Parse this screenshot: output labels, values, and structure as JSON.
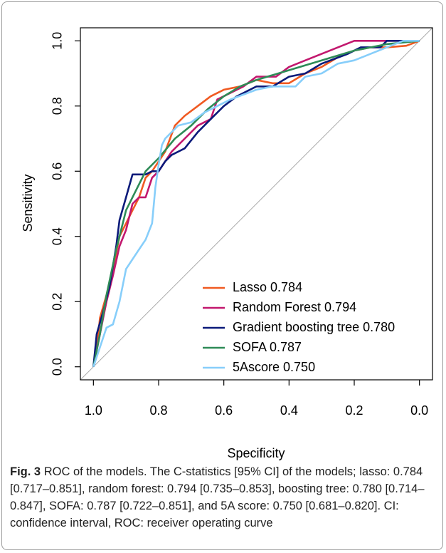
{
  "chart_data": {
    "type": "line",
    "xlabel": "Specificity",
    "ylabel": "Sensitivity",
    "xlim": [
      1.04,
      -0.04
    ],
    "ylim": [
      -0.04,
      1.04
    ],
    "xticks": [
      {
        "value": 1,
        "label": "1.0"
      },
      0.8,
      0.6,
      0.4,
      0.2,
      {
        "value": 0,
        "label": "0.0"
      }
    ],
    "yticks": [
      {
        "value": 0,
        "label": "0.0"
      },
      0.2,
      0.4,
      0.6,
      0.8,
      {
        "value": 1,
        "label": "1.0"
      }
    ],
    "diagonal": true,
    "diagonal_color": "#aaaaaa",
    "legend": "bottomright",
    "series": [
      {
        "name": "Lasso 0.784",
        "color": "#f05a22",
        "x": [
          1,
          0.99,
          0.98,
          0.96,
          0.94,
          0.92,
          0.9,
          0.88,
          0.86,
          0.84,
          0.82,
          0.78,
          0.75,
          0.72,
          0.68,
          0.64,
          0.6,
          0.55,
          0.5,
          0.45,
          0.4,
          0.35,
          0.3,
          0.25,
          0.2,
          0.15,
          0.1,
          0.04,
          0
        ],
        "values": [
          0,
          0.05,
          0.15,
          0.22,
          0.3,
          0.4,
          0.44,
          0.48,
          0.52,
          0.58,
          0.6,
          0.66,
          0.74,
          0.77,
          0.8,
          0.83,
          0.85,
          0.86,
          0.88,
          0.87,
          0.87,
          0.9,
          0.92,
          0.95,
          0.97,
          0.98,
          0.98,
          0.985,
          1
        ]
      },
      {
        "name": "Random Forest 0.794",
        "color": "#c2186e",
        "x": [
          1,
          0.98,
          0.96,
          0.94,
          0.92,
          0.9,
          0.88,
          0.86,
          0.84,
          0.82,
          0.8,
          0.76,
          0.72,
          0.68,
          0.64,
          0.62,
          0.58,
          0.54,
          0.5,
          0.44,
          0.4,
          0.35,
          0.3,
          0.25,
          0.2,
          0
        ],
        "values": [
          0,
          0.1,
          0.2,
          0.28,
          0.37,
          0.42,
          0.5,
          0.52,
          0.52,
          0.58,
          0.6,
          0.66,
          0.7,
          0.74,
          0.76,
          0.82,
          0.84,
          0.86,
          0.89,
          0.89,
          0.92,
          0.94,
          0.96,
          0.98,
          1,
          1
        ]
      },
      {
        "name": "Gradient boosting tree 0.780",
        "color": "#0b1a7a",
        "x": [
          1,
          0.99,
          0.97,
          0.95,
          0.93,
          0.92,
          0.9,
          0.88,
          0.84,
          0.82,
          0.8,
          0.78,
          0.76,
          0.72,
          0.68,
          0.64,
          0.6,
          0.56,
          0.5,
          0.45,
          0.4,
          0.35,
          0.3,
          0.22,
          0.18,
          0.12,
          0.1,
          0
        ],
        "values": [
          0,
          0.1,
          0.17,
          0.25,
          0.37,
          0.45,
          0.52,
          0.59,
          0.59,
          0.6,
          0.6,
          0.63,
          0.65,
          0.67,
          0.72,
          0.76,
          0.8,
          0.83,
          0.86,
          0.86,
          0.89,
          0.9,
          0.93,
          0.96,
          0.98,
          0.98,
          1,
          1
        ]
      },
      {
        "name": "SOFA 0.787",
        "color": "#2e8b57",
        "x": [
          1,
          0.98,
          0.96,
          0.93,
          0.9,
          0.87,
          0.84,
          0.8,
          0.75,
          0.7,
          0.65,
          0.6,
          0.55,
          0.5,
          0.4,
          0.3,
          0.2,
          0.1,
          0
        ],
        "values": [
          0,
          0.1,
          0.22,
          0.36,
          0.48,
          0.54,
          0.6,
          0.64,
          0.7,
          0.74,
          0.79,
          0.83,
          0.86,
          0.88,
          0.91,
          0.94,
          0.97,
          0.99,
          1
        ]
      },
      {
        "name": "5Ascore 0.750",
        "color": "#87cefa",
        "x": [
          1,
          0.98,
          0.96,
          0.94,
          0.92,
          0.9,
          0.88,
          0.86,
          0.84,
          0.82,
          0.81,
          0.8,
          0.79,
          0.78,
          0.74,
          0.7,
          0.66,
          0.62,
          0.58,
          0.5,
          0.45,
          0.38,
          0.35,
          0.3,
          0.25,
          0.2,
          0.15,
          0.1,
          0.05,
          0
        ],
        "values": [
          0,
          0.06,
          0.12,
          0.13,
          0.2,
          0.3,
          0.33,
          0.36,
          0.39,
          0.44,
          0.55,
          0.62,
          0.68,
          0.7,
          0.74,
          0.75,
          0.78,
          0.8,
          0.82,
          0.85,
          0.86,
          0.86,
          0.89,
          0.9,
          0.93,
          0.94,
          0.96,
          0.98,
          1,
          1
        ]
      }
    ]
  },
  "caption": {
    "label": "Fig. 3",
    "text": "ROC of the models. The C-statistics [95% CI] of the models; lasso: 0.784 [0.717–0.851], random forest: 0.794 [0.735–0.853], boosting tree: 0.780 [0.714–0.847], SOFA: 0.787 [0.722–0.851], and 5A score: 0.750 [0.681–0.820]. CI: confidence interval, ROC: receiver operating curve"
  }
}
